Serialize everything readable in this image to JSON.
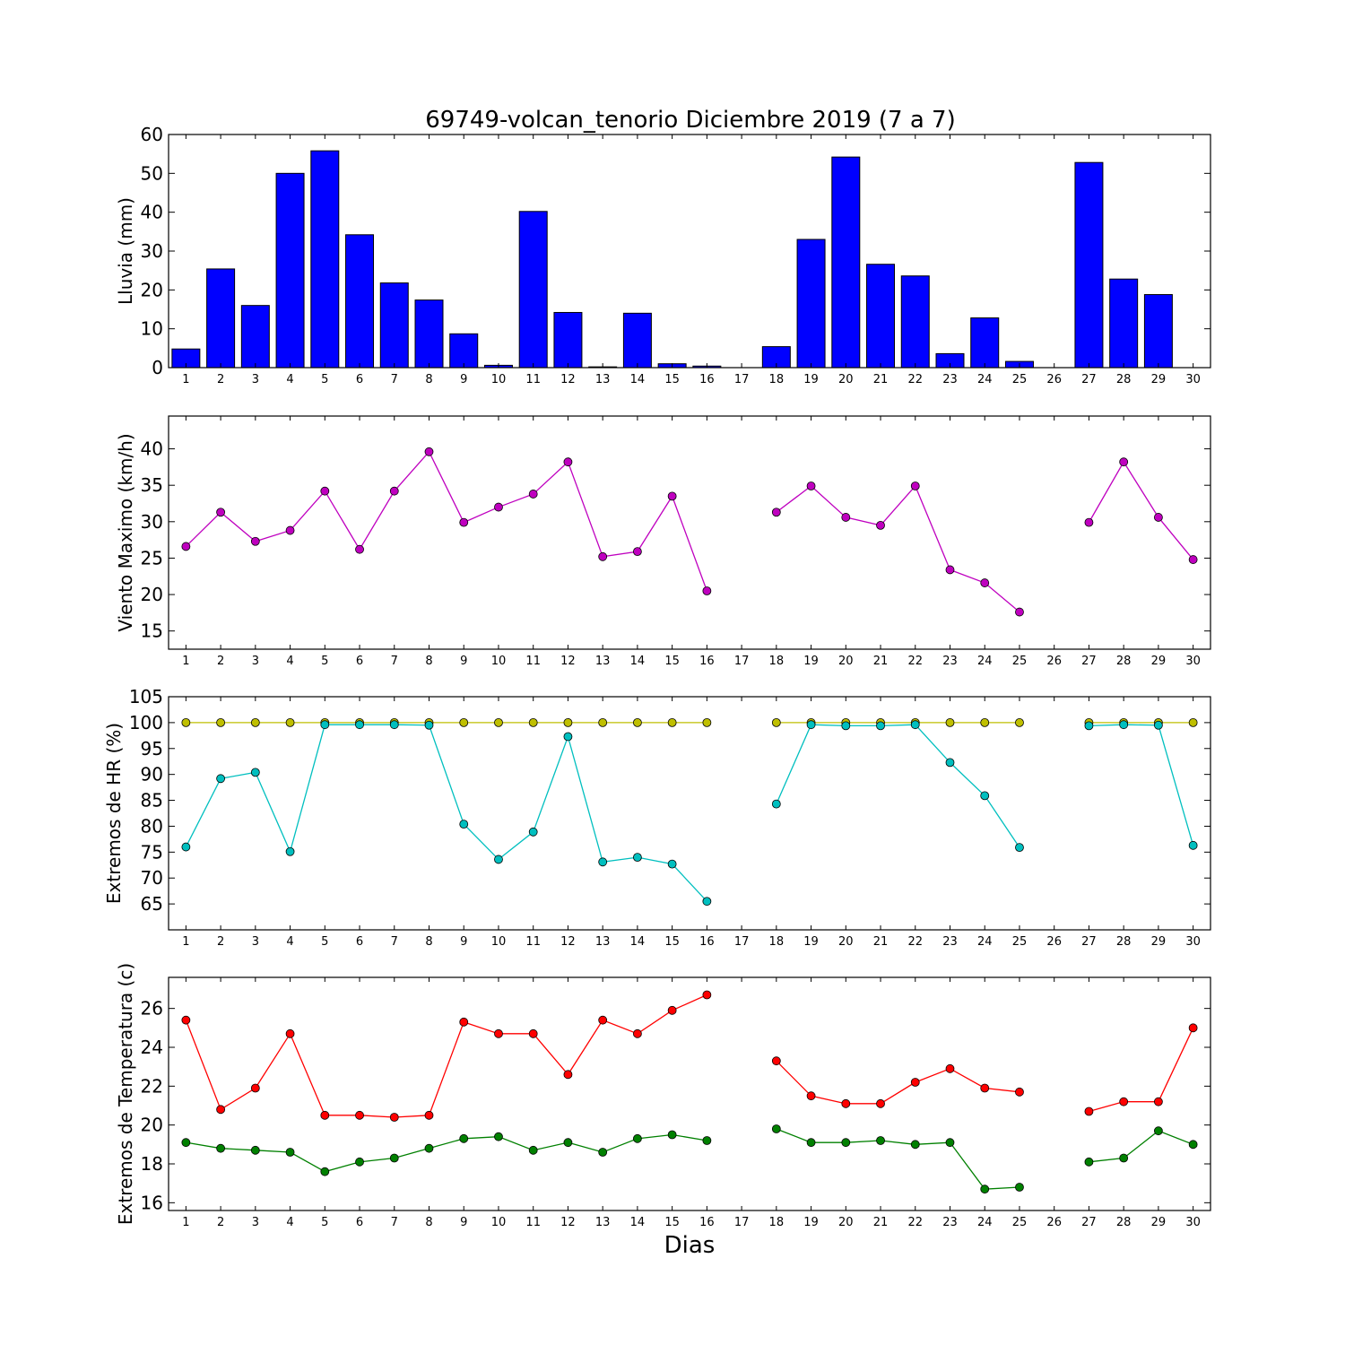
{
  "chart_data": [
    {
      "type": "bar",
      "title": "69749-volcan_tenorio Diciembre 2019  (7 a 7)",
      "ylabel": "Lluvia (mm)",
      "ylim": [
        0,
        60
      ],
      "yticks": [
        0,
        10,
        20,
        30,
        40,
        50,
        60
      ],
      "x": [
        1,
        2,
        3,
        4,
        5,
        6,
        7,
        8,
        9,
        10,
        11,
        12,
        13,
        14,
        15,
        16,
        17,
        18,
        19,
        20,
        21,
        22,
        23,
        24,
        25,
        26,
        27,
        28,
        29,
        30
      ],
      "xtick_labels": [
        "1",
        "2",
        "3",
        "4",
        "5",
        "6",
        "7",
        "8",
        "9",
        "10",
        "11",
        "12",
        "13",
        "14",
        "15",
        "16",
        "17",
        "18",
        "19",
        "20",
        "21",
        "22",
        "23",
        "24",
        "25",
        "26",
        "27",
        "28",
        "29",
        "30"
      ],
      "series": [
        {
          "color": "#0000ff",
          "values": [
            4.8,
            25.4,
            16.0,
            50.0,
            55.8,
            34.2,
            21.8,
            17.4,
            8.7,
            0.6,
            40.2,
            14.2,
            0.2,
            14.0,
            1.0,
            0.4,
            null,
            5.4,
            33.0,
            54.2,
            26.6,
            23.6,
            3.6,
            12.8,
            1.6,
            null,
            52.8,
            22.8,
            18.8,
            null
          ]
        }
      ]
    },
    {
      "type": "line",
      "ylabel": "Viento Maximo (km/h)",
      "ylim": [
        12.5,
        44.5
      ],
      "yticks": [
        15,
        20,
        25,
        30,
        35,
        40
      ],
      "x": [
        1,
        2,
        3,
        4,
        5,
        6,
        7,
        8,
        9,
        10,
        11,
        12,
        13,
        14,
        15,
        16,
        17,
        18,
        19,
        20,
        21,
        22,
        23,
        24,
        25,
        26,
        27,
        28,
        29,
        30
      ],
      "xtick_labels": [
        "1",
        "2",
        "3",
        "4",
        "5",
        "6",
        "7",
        "8",
        "9",
        "10",
        "11",
        "12",
        "13",
        "14",
        "15",
        "16",
        "17",
        "18",
        "19",
        "20",
        "21",
        "22",
        "23",
        "24",
        "25",
        "26",
        "27",
        "28",
        "29",
        "30"
      ],
      "series": [
        {
          "color": "#bf00bf",
          "values": [
            26.6,
            31.3,
            27.3,
            28.8,
            34.2,
            26.2,
            34.2,
            39.6,
            29.9,
            32.0,
            33.8,
            38.2,
            25.2,
            25.9,
            33.5,
            20.5,
            null,
            31.3,
            34.9,
            30.6,
            29.5,
            34.9,
            23.4,
            21.6,
            17.6,
            null,
            29.9,
            38.2,
            30.6,
            24.8
          ]
        }
      ]
    },
    {
      "type": "line",
      "ylabel": "Extremos de HR (%)",
      "ylim": [
        60,
        105
      ],
      "yticks": [
        65,
        70,
        75,
        80,
        85,
        90,
        95,
        100,
        105
      ],
      "x": [
        1,
        2,
        3,
        4,
        5,
        6,
        7,
        8,
        9,
        10,
        11,
        12,
        13,
        14,
        15,
        16,
        17,
        18,
        19,
        20,
        21,
        22,
        23,
        24,
        25,
        26,
        27,
        28,
        29,
        30
      ],
      "xtick_labels": [
        "1",
        "2",
        "3",
        "4",
        "5",
        "6",
        "7",
        "8",
        "9",
        "10",
        "11",
        "12",
        "13",
        "14",
        "15",
        "16",
        "17",
        "18",
        "19",
        "20",
        "21",
        "22",
        "23",
        "24",
        "25",
        "26",
        "27",
        "28",
        "29",
        "30"
      ],
      "series": [
        {
          "color": "#bfbf00",
          "values": [
            100,
            100,
            100,
            100,
            100,
            100,
            100,
            100,
            100,
            100,
            100,
            100,
            100,
            100,
            100,
            100,
            null,
            100,
            100,
            100,
            100,
            100,
            100,
            100,
            100,
            null,
            100,
            100,
            100,
            100
          ]
        },
        {
          "color": "#00bfbf",
          "values": [
            76.0,
            89.2,
            90.4,
            75.1,
            99.6,
            99.6,
            99.6,
            99.5,
            80.4,
            73.6,
            78.9,
            97.3,
            73.1,
            74.0,
            72.7,
            65.5,
            null,
            84.3,
            99.6,
            99.4,
            99.4,
            99.6,
            92.3,
            85.9,
            75.9,
            null,
            99.4,
            99.6,
            99.5,
            76.3
          ]
        }
      ]
    },
    {
      "type": "line",
      "ylabel": "Extremos de Temperatura (c)",
      "xlabel": "Dias",
      "ylim": [
        15.6,
        27.6
      ],
      "yticks": [
        16,
        18,
        20,
        22,
        24,
        26
      ],
      "x": [
        1,
        2,
        3,
        4,
        5,
        6,
        7,
        8,
        9,
        10,
        11,
        12,
        13,
        14,
        15,
        16,
        17,
        18,
        19,
        20,
        21,
        22,
        23,
        24,
        25,
        26,
        27,
        28,
        29,
        30
      ],
      "xtick_labels": [
        "1",
        "2",
        "3",
        "4",
        "5",
        "6",
        "7",
        "8",
        "9",
        "10",
        "11",
        "12",
        "13",
        "14",
        "15",
        "16",
        "17",
        "18",
        "19",
        "20",
        "21",
        "22",
        "23",
        "24",
        "25",
        "26",
        "27",
        "28",
        "29",
        "30"
      ],
      "series": [
        {
          "color": "#ff0000",
          "values": [
            25.4,
            20.8,
            21.9,
            24.7,
            20.5,
            20.5,
            20.4,
            20.5,
            25.3,
            24.7,
            24.7,
            22.6,
            25.4,
            24.7,
            25.9,
            26.7,
            null,
            23.3,
            21.5,
            21.1,
            21.1,
            22.2,
            22.9,
            21.9,
            21.7,
            null,
            20.7,
            21.2,
            21.2,
            25.0
          ]
        },
        {
          "color": "#008000",
          "values": [
            19.1,
            18.8,
            18.7,
            18.6,
            17.6,
            18.1,
            18.3,
            18.8,
            19.3,
            19.4,
            18.7,
            19.1,
            18.6,
            19.3,
            19.5,
            19.2,
            null,
            19.8,
            19.1,
            19.1,
            19.2,
            19.0,
            19.1,
            16.7,
            16.8,
            null,
            18.1,
            18.3,
            19.7,
            19.0
          ]
        }
      ]
    }
  ]
}
